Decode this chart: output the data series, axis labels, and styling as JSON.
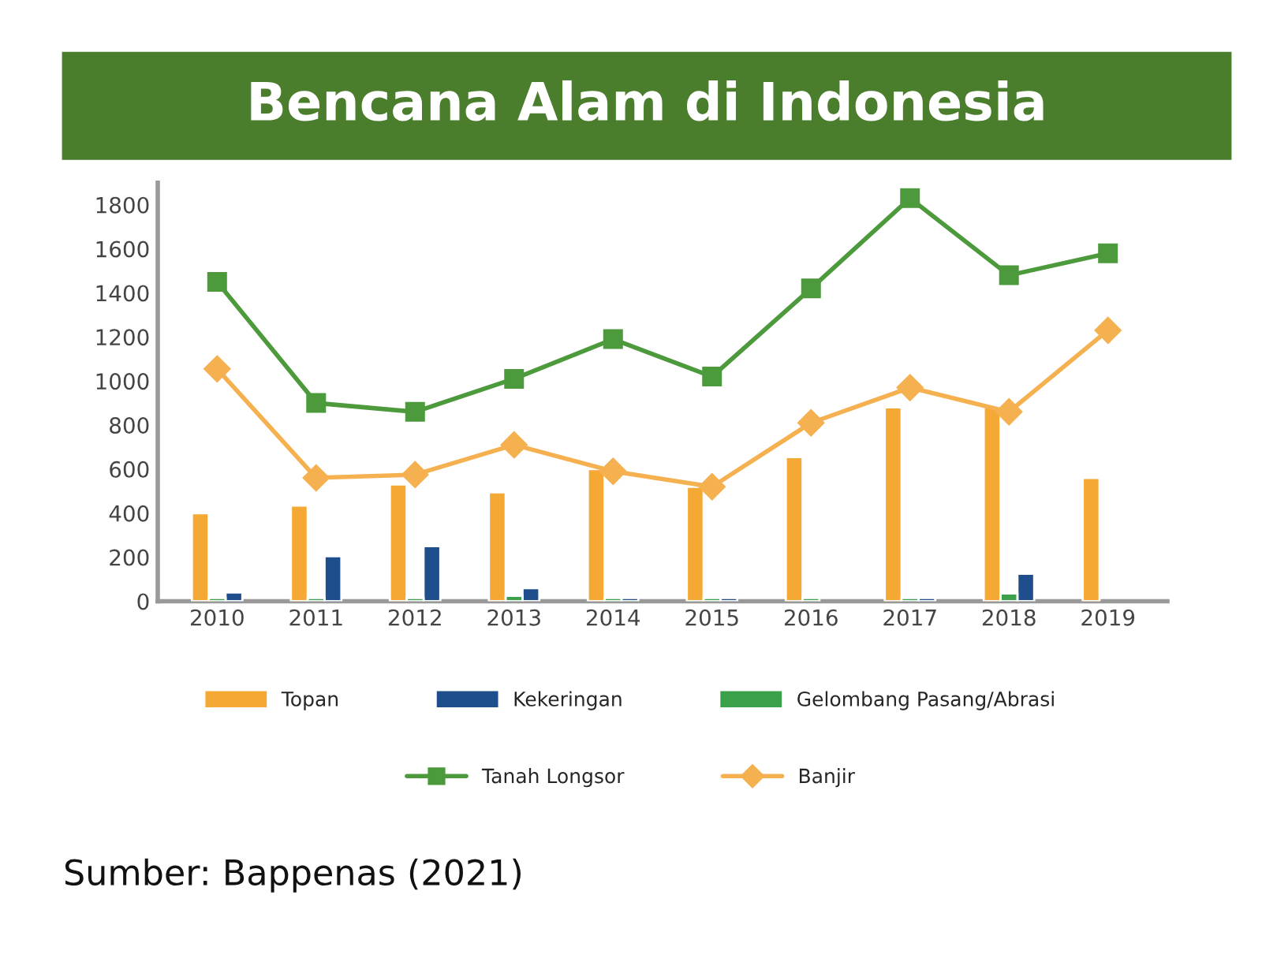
{
  "chart_data": {
    "type": "bar",
    "title": "Bencana Alam di Indonesia",
    "categories": [
      "2010",
      "2011",
      "2012",
      "2013",
      "2014",
      "2015",
      "2016",
      "2017",
      "2018",
      "2019"
    ],
    "series": [
      {
        "name": "Topan",
        "color": "#f5a833",
        "values": [
          400,
          435,
          530,
          495,
          600,
          520,
          655,
          880,
          880,
          560
        ]
      },
      {
        "name": "Kekeringan",
        "color": "#1f4e8c",
        "values": [
          40,
          205,
          250,
          60,
          15,
          15,
          null,
          15,
          125,
          null
        ]
      },
      {
        "name": "Gelombang Pasang/Abrasi",
        "color": "#3aa04a",
        "values": [
          15,
          15,
          15,
          25,
          15,
          15,
          15,
          15,
          35,
          null
        ]
      },
      {
        "name": "Tanah Longsor",
        "type": "line",
        "marker": "square",
        "color": "#4c9a3c",
        "values": [
          1450,
          900,
          860,
          1010,
          1190,
          1020,
          1420,
          1830,
          1480,
          1580
        ]
      },
      {
        "name": "Banjir",
        "type": "line",
        "marker": "diamond",
        "color": "#f5b050",
        "values": [
          1055,
          560,
          575,
          710,
          590,
          520,
          810,
          970,
          860,
          1230
        ]
      }
    ],
    "ylim": [
      0,
      1900
    ],
    "yticks": [
      0,
      200,
      400,
      600,
      800,
      1000,
      1200,
      1400,
      1600,
      1800
    ],
    "grid": false,
    "legend": "bottom",
    "annotations": [
      "Sumber: Bappenas (2021)"
    ]
  }
}
